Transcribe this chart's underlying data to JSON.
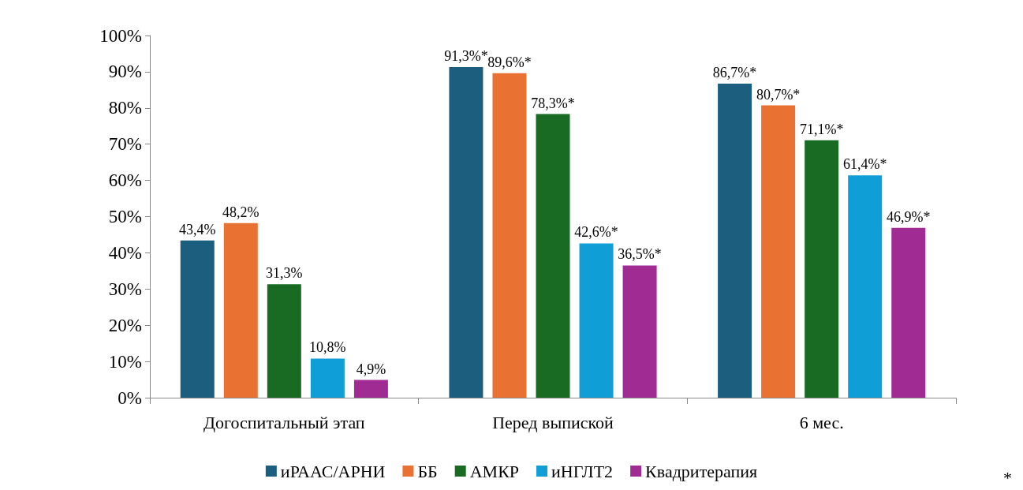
{
  "chart_data": {
    "type": "bar",
    "categories": [
      "Догоспитальный этап",
      "Перед выпиской",
      "6 мес."
    ],
    "series": [
      {
        "name": "иРААС/АРНИ",
        "color": "#1b5e7e",
        "values": [
          43.4,
          91.3,
          86.7
        ],
        "value_labels": [
          "43,4%",
          "91,3%*",
          "86,7%*"
        ]
      },
      {
        "name": "ББ",
        "color": "#e97132",
        "values": [
          48.2,
          89.6,
          80.7
        ],
        "value_labels": [
          "48,2%",
          "89,6%*",
          "80,7%*"
        ]
      },
      {
        "name": "АМКР",
        "color": "#196b24",
        "values": [
          31.3,
          78.3,
          71.1
        ],
        "value_labels": [
          "31,3%",
          "78,3%*",
          "71,1%*"
        ]
      },
      {
        "name": "иНГЛТ2",
        "color": "#0f9ed5",
        "values": [
          10.8,
          42.6,
          61.4
        ],
        "value_labels": [
          "10,8%",
          "42,6%*",
          "61,4%*"
        ]
      },
      {
        "name": "Квадритерапия",
        "color": "#a02b93",
        "values": [
          4.9,
          36.5,
          46.9
        ],
        "value_labels": [
          "4,9%",
          "36,5%*",
          "46,9%*"
        ]
      }
    ],
    "ylim": [
      0,
      100
    ],
    "yticks": [
      {
        "value": 0,
        "label": "0%"
      },
      {
        "value": 10,
        "label": "10%"
      },
      {
        "value": 20,
        "label": "20%"
      },
      {
        "value": 30,
        "label": "30%"
      },
      {
        "value": 40,
        "label": "40%"
      },
      {
        "value": 50,
        "label": "50%"
      },
      {
        "value": 60,
        "label": "60%"
      },
      {
        "value": 70,
        "label": "70%"
      },
      {
        "value": 80,
        "label": "80%"
      },
      {
        "value": 90,
        "label": "90%"
      },
      {
        "value": 100,
        "label": "100%"
      }
    ],
    "grid": false,
    "legend": "bottom",
    "annotations": [
      "*"
    ]
  }
}
